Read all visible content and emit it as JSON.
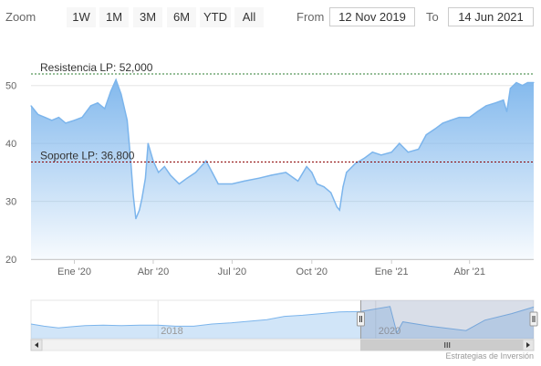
{
  "range_selector": {
    "zoom_label": "Zoom",
    "buttons": [
      "1W",
      "1M",
      "3M",
      "6M",
      "YTD",
      "All"
    ],
    "from_label": "From",
    "from_value": "12 Nov 2019",
    "to_label": "To",
    "to_value": "14 Jun 2021"
  },
  "credits": "Estrategias de Inversión",
  "chart_data": {
    "type": "area",
    "x_start": "2019-11-12",
    "x_end": "2021-06-14",
    "x_ticks": [
      {
        "date": "2020-01-01",
        "label": "Ene '20"
      },
      {
        "date": "2020-04-01",
        "label": "Abr '20"
      },
      {
        "date": "2020-07-01",
        "label": "Jul '20"
      },
      {
        "date": "2020-10-01",
        "label": "Oct '20"
      },
      {
        "date": "2021-01-01",
        "label": "Ene '21"
      },
      {
        "date": "2021-04-01",
        "label": "Abr '21"
      }
    ],
    "y_ticks": [
      20,
      30,
      40,
      50
    ],
    "ylim": [
      20,
      55
    ],
    "grid": true,
    "series": [
      {
        "color": "#7cb5ec",
        "points": [
          [
            "2019-11-12",
            46.5
          ],
          [
            "2019-11-20",
            45.0
          ],
          [
            "2019-11-28",
            44.5
          ],
          [
            "2019-12-06",
            44.0
          ],
          [
            "2019-12-14",
            44.5
          ],
          [
            "2019-12-22",
            43.5
          ],
          [
            "2020-01-01",
            44.0
          ],
          [
            "2020-01-10",
            44.5
          ],
          [
            "2020-01-20",
            46.5
          ],
          [
            "2020-01-28",
            47.0
          ],
          [
            "2020-02-05",
            46.0
          ],
          [
            "2020-02-12",
            49.0
          ],
          [
            "2020-02-18",
            51.0
          ],
          [
            "2020-02-24",
            48.5
          ],
          [
            "2020-03-02",
            44.0
          ],
          [
            "2020-03-06",
            37.0
          ],
          [
            "2020-03-09",
            31.0
          ],
          [
            "2020-03-12",
            27.0
          ],
          [
            "2020-03-16",
            28.5
          ],
          [
            "2020-03-19",
            30.5
          ],
          [
            "2020-03-23",
            34.0
          ],
          [
            "2020-03-26",
            40.0
          ],
          [
            "2020-04-01",
            37.0
          ],
          [
            "2020-04-07",
            35.0
          ],
          [
            "2020-04-14",
            36.0
          ],
          [
            "2020-04-21",
            34.5
          ],
          [
            "2020-05-01",
            33.0
          ],
          [
            "2020-05-10",
            34.0
          ],
          [
            "2020-05-20",
            35.0
          ],
          [
            "2020-06-01",
            37.0
          ],
          [
            "2020-06-08",
            35.0
          ],
          [
            "2020-06-15",
            33.0
          ],
          [
            "2020-07-01",
            33.0
          ],
          [
            "2020-07-15",
            33.5
          ],
          [
            "2020-08-01",
            34.0
          ],
          [
            "2020-08-15",
            34.5
          ],
          [
            "2020-09-01",
            35.0
          ],
          [
            "2020-09-15",
            33.5
          ],
          [
            "2020-09-25",
            36.0
          ],
          [
            "2020-10-01",
            35.0
          ],
          [
            "2020-10-07",
            33.0
          ],
          [
            "2020-10-15",
            32.5
          ],
          [
            "2020-10-23",
            31.5
          ],
          [
            "2020-10-30",
            29.0
          ],
          [
            "2020-11-02",
            28.5
          ],
          [
            "2020-11-06",
            32.5
          ],
          [
            "2020-11-10",
            35.0
          ],
          [
            "2020-11-20",
            36.5
          ],
          [
            "2020-12-01",
            37.5
          ],
          [
            "2020-12-10",
            38.5
          ],
          [
            "2020-12-20",
            38.0
          ],
          [
            "2021-01-01",
            38.5
          ],
          [
            "2021-01-10",
            40.0
          ],
          [
            "2021-01-20",
            38.5
          ],
          [
            "2021-02-01",
            39.0
          ],
          [
            "2021-02-10",
            41.5
          ],
          [
            "2021-02-20",
            42.5
          ],
          [
            "2021-03-01",
            43.5
          ],
          [
            "2021-03-10",
            44.0
          ],
          [
            "2021-03-20",
            44.5
          ],
          [
            "2021-04-01",
            44.5
          ],
          [
            "2021-04-10",
            45.5
          ],
          [
            "2021-04-20",
            46.5
          ],
          [
            "2021-05-01",
            47.0
          ],
          [
            "2021-05-10",
            47.5
          ],
          [
            "2021-05-14",
            45.5
          ],
          [
            "2021-05-18",
            49.5
          ],
          [
            "2021-05-25",
            50.5
          ],
          [
            "2021-06-01",
            50.0
          ],
          [
            "2021-06-07",
            50.5
          ],
          [
            "2021-06-14",
            50.5
          ]
        ]
      }
    ],
    "plot_lines": [
      {
        "value": 52,
        "label": "Resistencia LP: 52,000",
        "color": "#2e7d32"
      },
      {
        "value": 36.8,
        "label": "Soporte LP: 36,800",
        "color": "#8b0000"
      }
    ],
    "navigator": {
      "tick_labels": [
        {
          "date": "2018-01-01",
          "label": "2018"
        },
        {
          "date": "2020-01-01",
          "label": "2020"
        }
      ],
      "x_start": "2016-11-01",
      "x_end": "2021-06-14",
      "points": [
        [
          "2016-11-01",
          35.0
        ],
        [
          "2016-12-15",
          33.0
        ],
        [
          "2017-02-01",
          31.5
        ],
        [
          "2017-03-15",
          32.5
        ],
        [
          "2017-05-01",
          33.5
        ],
        [
          "2017-07-01",
          34.0
        ],
        [
          "2017-09-01",
          33.5
        ],
        [
          "2017-11-01",
          34.0
        ],
        [
          "2018-01-01",
          34.0
        ],
        [
          "2018-03-01",
          33.0
        ],
        [
          "2018-05-01",
          33.0
        ],
        [
          "2018-07-01",
          35.0
        ],
        [
          "2018-09-01",
          36.0
        ],
        [
          "2018-11-01",
          37.5
        ],
        [
          "2019-01-01",
          39.0
        ],
        [
          "2019-03-01",
          42.0
        ],
        [
          "2019-05-01",
          43.0
        ],
        [
          "2019-07-01",
          44.5
        ],
        [
          "2019-09-01",
          46.0
        ],
        [
          "2019-11-12",
          46.5
        ],
        [
          "2020-02-18",
          51.0
        ],
        [
          "2020-03-12",
          27.0
        ],
        [
          "2020-04-01",
          37.0
        ],
        [
          "2020-07-01",
          33.0
        ],
        [
          "2020-10-30",
          29.0
        ],
        [
          "2021-01-01",
          38.5
        ],
        [
          "2021-04-01",
          44.5
        ],
        [
          "2021-06-14",
          50.5
        ]
      ]
    }
  }
}
